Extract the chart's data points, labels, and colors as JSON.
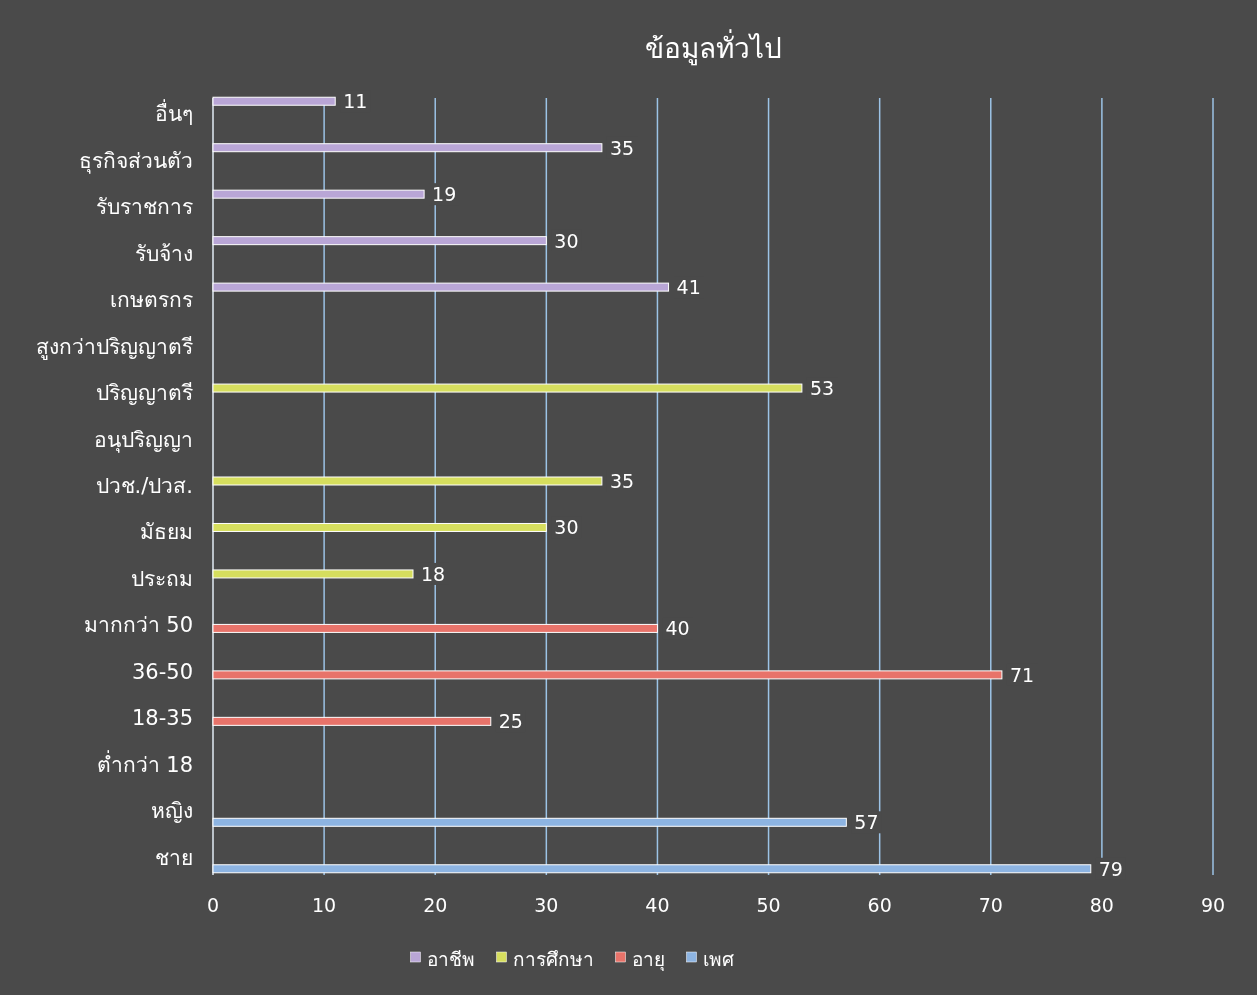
{
  "chart_data": {
    "type": "bar",
    "orientation": "horizontal",
    "title": "ข้อมูลทั่วไป",
    "categories": [
      "อื่นๆ",
      "ธุรกิจส่วนตัว",
      "รับราชการ",
      "รับจ้าง",
      "เกษตรกร",
      "สูงกว่าปริญญาตรี",
      "ปริญญาตรี",
      "อนุปริญญา",
      "ปวช./ปวส.",
      "มัธยม",
      "ประถม",
      "มากกว่า 50",
      "36-50",
      "18-35",
      "ต่ำกว่า 18",
      "หญิง",
      "ชาย"
    ],
    "series": [
      {
        "name": "อาชีพ",
        "color": "#b9a6d6",
        "values": [
          11,
          35,
          19,
          30,
          41,
          null,
          null,
          null,
          null,
          null,
          null,
          null,
          null,
          null,
          null,
          null,
          null
        ]
      },
      {
        "name": "การศึกษา",
        "color": "#d6de5e",
        "values": [
          null,
          null,
          null,
          null,
          null,
          null,
          53,
          null,
          35,
          30,
          18,
          null,
          null,
          null,
          null,
          null,
          null
        ]
      },
      {
        "name": "อายุ",
        "color": "#e8736a",
        "values": [
          null,
          null,
          null,
          null,
          null,
          null,
          null,
          null,
          null,
          null,
          null,
          40,
          71,
          25,
          null,
          null,
          null
        ]
      },
      {
        "name": "เพศ",
        "color": "#8db4e2",
        "values": [
          null,
          null,
          null,
          null,
          null,
          null,
          null,
          null,
          null,
          null,
          null,
          null,
          null,
          null,
          null,
          57,
          79
        ]
      }
    ],
    "xlim": [
      0,
      90
    ],
    "xticks": [
      0,
      10,
      20,
      30,
      40,
      50,
      60,
      70,
      80,
      90
    ],
    "grid": "x",
    "legend": "bottom",
    "data_labels": true
  }
}
